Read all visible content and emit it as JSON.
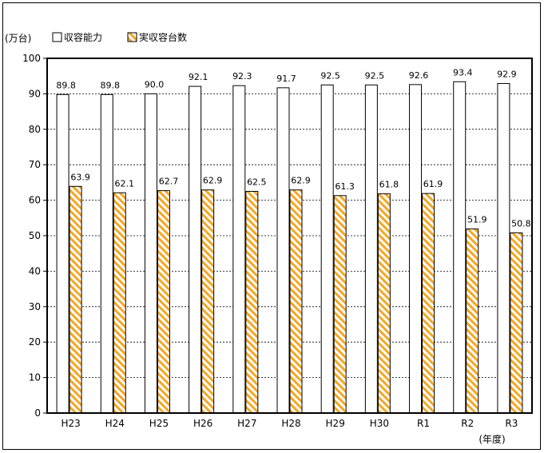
{
  "chart_data": {
    "type": "bar",
    "unit_label": "(万台)",
    "x_unit_label": "(年度)",
    "categories": [
      "H23",
      "H24",
      "H25",
      "H26",
      "H27",
      "H28",
      "H29",
      "H30",
      "R1",
      "R2",
      "R3"
    ],
    "series": [
      {
        "name": "収容能力",
        "style": "hollow",
        "values": [
          89.8,
          89.8,
          90.0,
          92.1,
          92.3,
          91.7,
          92.5,
          92.5,
          92.6,
          93.4,
          92.9
        ],
        "labels": [
          "89.8",
          "89.8",
          "90.0",
          "92.1",
          "92.3",
          "91.7",
          "92.5",
          "92.5",
          "92.6",
          "93.4",
          "92.9"
        ]
      },
      {
        "name": "実収容台数",
        "style": "hatched",
        "values": [
          63.9,
          62.1,
          62.7,
          62.9,
          62.5,
          62.9,
          61.3,
          61.8,
          61.9,
          51.9,
          50.8
        ],
        "labels": [
          "63.9",
          "62.1",
          "62.7",
          "62.9",
          "62.5",
          "62.9",
          "61.3",
          "61.8",
          "61.9",
          "51.9",
          "50.8"
        ]
      }
    ],
    "ylim": [
      0,
      100
    ],
    "yticks": [
      0,
      10,
      20,
      30,
      40,
      50,
      60,
      70,
      80,
      90,
      100
    ],
    "grid": true,
    "legend_position": "top-left",
    "colors": {
      "hatch": "#F5A623",
      "hollow_fill": "#FFFFFF",
      "outline": "#000000",
      "grid": "#000000"
    }
  }
}
